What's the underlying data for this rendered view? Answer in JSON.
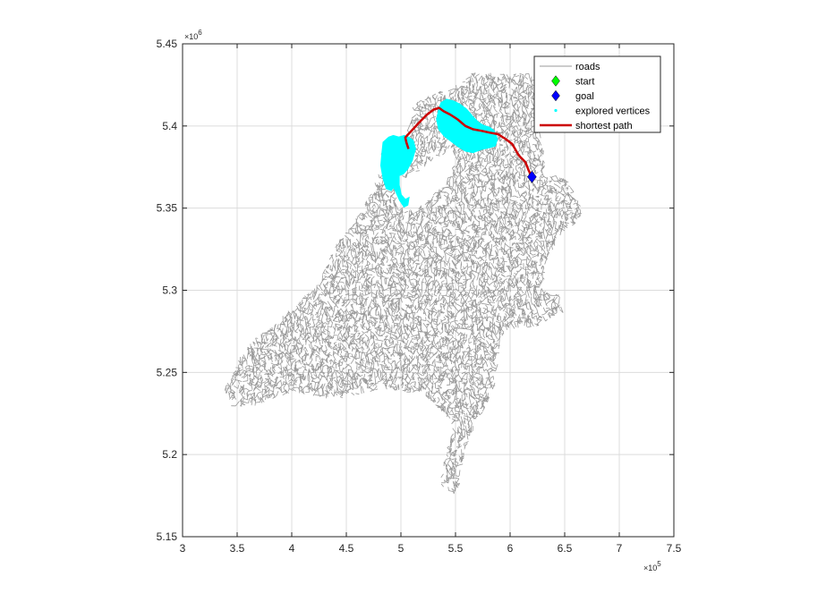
{
  "chart_data": {
    "type": "line",
    "title": "",
    "xlabel": "",
    "ylabel": "",
    "xlim": [
      300000,
      750000
    ],
    "ylim": [
      5150000,
      5450000
    ],
    "x_exponent_label": "×10",
    "x_exponent_power": "5",
    "y_exponent_label": "×10",
    "y_exponent_power": "6",
    "x_tick_values": [
      3,
      3.5,
      4,
      4.5,
      5,
      5.5,
      6,
      6.5,
      7,
      7.5
    ],
    "x_tick_labels": [
      "3",
      "3.5",
      "4",
      "4.5",
      "5",
      "5.5",
      "6",
      "6.5",
      "7",
      "7.5"
    ],
    "y_tick_values": [
      5.15,
      5.2,
      5.25,
      5.3,
      5.35,
      5.4,
      5.45
    ],
    "y_tick_labels": [
      "5.15",
      "5.2",
      "5.25",
      "5.3",
      "5.35",
      "5.4",
      "5.45"
    ],
    "grid": true,
    "legend_position": "top-right",
    "colors": {
      "roads": "#999999",
      "start": "#00ff00",
      "goal": "#0000ff",
      "explored": "#00ffff",
      "path": "#cc0000",
      "grid": "#dcdcdc",
      "axis": "#262626"
    },
    "legend": [
      {
        "key": "roads",
        "label": "roads"
      },
      {
        "key": "start",
        "label": "start"
      },
      {
        "key": "goal",
        "label": "goal"
      },
      {
        "key": "explored",
        "label": "explored vertices"
      },
      {
        "key": "path",
        "label": "shortest path"
      }
    ],
    "start": {
      "x": 507000,
      "y": 5386000
    },
    "goal": {
      "x": 620000,
      "y": 5369000
    },
    "shortest_path": {
      "x": [
        507000,
        505000,
        504000,
        511000,
        518000,
        524000,
        530000,
        535000,
        539000,
        545000,
        552000,
        559000,
        566000,
        574000,
        581000,
        589000,
        596000,
        602000,
        608000,
        614000,
        617000,
        620000
      ],
      "y": [
        5386000,
        5390000,
        5393000,
        5398000,
        5403000,
        5407000,
        5410000,
        5411000,
        5409000,
        5407000,
        5404000,
        5400000,
        5398000,
        5397000,
        5396000,
        5395000,
        5392000,
        5389000,
        5382000,
        5378000,
        5373000,
        5369000
      ]
    },
    "explored_regions": [
      {
        "x": [
          484000,
          489000,
          493000,
          498000,
          503000,
          507000,
          511000,
          513000,
          510000,
          506000,
          502000,
          498000,
          498000,
          500000,
          504000,
          507000,
          506000,
          503000,
          499000,
          495000,
          493000,
          491000,
          487000,
          484000,
          482000,
          483000
        ],
        "y": [
          5390000,
          5393000,
          5394000,
          5393000,
          5394000,
          5393000,
          5391000,
          5386000,
          5379000,
          5374000,
          5371000,
          5370000,
          5364000,
          5358000,
          5355000,
          5356000,
          5352000,
          5351000,
          5355000,
          5361000,
          5363000,
          5361000,
          5362000,
          5368000,
          5376000,
          5384000
        ]
      },
      {
        "x": [
          537000,
          542000,
          548000,
          554000,
          560000,
          565000,
          571000,
          576000,
          581000,
          585000,
          588000,
          586000,
          581000,
          574000,
          566000,
          559000,
          552000,
          546000,
          540000,
          535000,
          533000,
          535000
        ],
        "y": [
          5414000,
          5416000,
          5415000,
          5413000,
          5410000,
          5406000,
          5402000,
          5400000,
          5399000,
          5397000,
          5392000,
          5388000,
          5387000,
          5386000,
          5384000,
          5385000,
          5388000,
          5391000,
          5394000,
          5398000,
          5404000,
          5410000
        ]
      }
    ]
  }
}
